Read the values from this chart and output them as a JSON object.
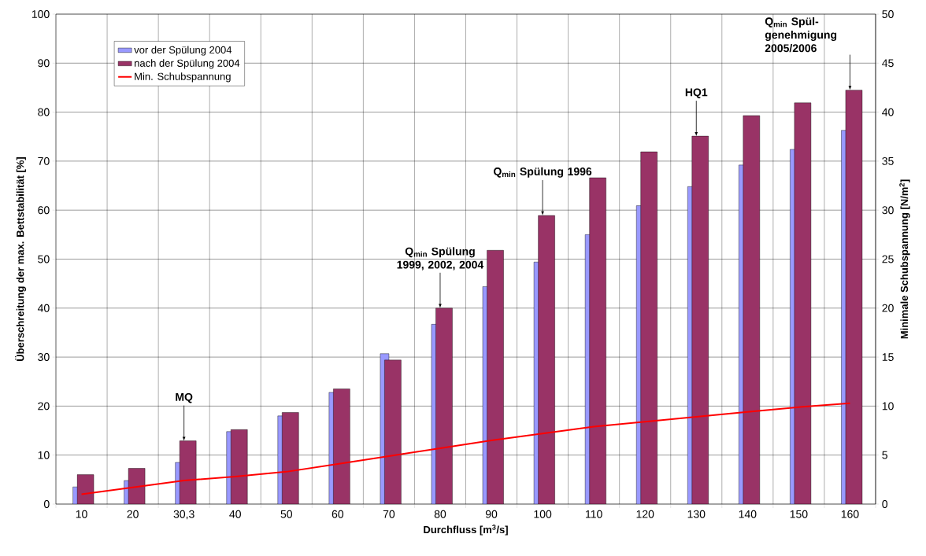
{
  "chart_data": {
    "type": "bar",
    "categories": [
      "10",
      "20",
      "30,3",
      "40",
      "50",
      "60",
      "70",
      "80",
      "90",
      "100",
      "110",
      "120",
      "130",
      "140",
      "150",
      "160"
    ],
    "series": [
      {
        "name": "vor der Spülung 2004",
        "color": "#9999ff",
        "values": [
          3.5,
          4.8,
          8.5,
          14.8,
          18,
          22.8,
          30.7,
          36.7,
          44.4,
          49.4,
          55,
          60.9,
          64.8,
          69.2,
          72.4,
          76.3
        ]
      },
      {
        "name": "nach der Spülung 2004",
        "color": "#993366",
        "values": [
          6,
          7.3,
          12.9,
          15.2,
          18.7,
          23.5,
          29.4,
          40,
          51.8,
          58.9,
          66.6,
          71.9,
          75.1,
          79.3,
          81.9,
          84.5
        ]
      },
      {
        "name": "Min. Schubspannung",
        "type": "line",
        "axis": "y2",
        "color": "#ff0000",
        "values": [
          1.0,
          1.7,
          2.4,
          2.8,
          3.3,
          4.1,
          4.9,
          5.7,
          6.5,
          7.2,
          7.9,
          8.4,
          8.9,
          9.4,
          9.9,
          10.3
        ]
      }
    ],
    "xlabel": "Durchfluss [m$^{3}$/s]",
    "ylabel": "Überschreitung der max. Bettstabilität [%]",
    "y2label": "Minimale Schubspannung [N/m$^{2}$]",
    "ylim": [
      0,
      100
    ],
    "yticks": [
      0,
      10,
      20,
      30,
      40,
      50,
      60,
      70,
      80,
      90,
      100
    ],
    "y2lim": [
      0,
      50
    ],
    "y2ticks": [
      0,
      5,
      10,
      15,
      20,
      25,
      30,
      35,
      40,
      45,
      50
    ],
    "grid": true,
    "legend": "top left",
    "annotations": [
      {
        "text": "MQ",
        "x": "30,3",
        "y": 12.9
      },
      {
        "text": "Q$_{min}$ Spülung 1999, 2002, 2004",
        "x": "80",
        "y": 40
      },
      {
        "text": "Q$_{min}$ Spülung 1996",
        "x": "100",
        "y": 58.9
      },
      {
        "text": "HQ1",
        "x": "130",
        "y": 75.1
      },
      {
        "text": "Q$_{min}$ Spül-genehmigung 2005/2006",
        "x": "160",
        "y": 84.5
      }
    ]
  }
}
